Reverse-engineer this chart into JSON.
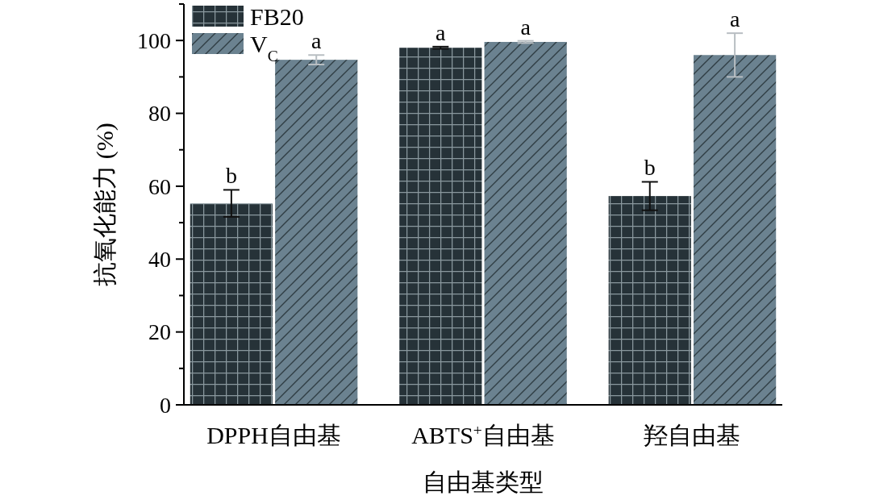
{
  "chart_data": {
    "type": "bar",
    "xlabel": "自由基类型",
    "ylabel": "抗氧化能力 (%)",
    "categories": [
      "DPPH自由基",
      "ABTS$^{+}$自由基",
      "羟自由基"
    ],
    "series": [
      {
        "name": "FB20",
        "color": "#263238",
        "values": [
          55.3,
          98.0,
          57.3
        ],
        "errors": [
          3.7,
          0.3,
          3.9
        ],
        "value_labels": [
          "b",
          "a",
          "b"
        ]
      },
      {
        "name": "V$_{C}$",
        "color": "#6b8290",
        "values": [
          94.7,
          99.6,
          96.0
        ],
        "errors": [
          1.3,
          0.3,
          6.0
        ],
        "value_labels": [
          "a",
          "a",
          "a"
        ]
      }
    ],
    "ylim": [
      0,
      110
    ],
    "yticks": [
      0,
      {
        "value": 10,
        "label": null
      },
      20,
      {
        "value": 30,
        "label": null
      },
      40,
      {
        "value": 50,
        "label": null
      },
      60,
      {
        "value": 70,
        "label": null
      },
      80,
      {
        "value": 90,
        "label": null
      },
      100,
      {
        "value": 110,
        "label": null
      }
    ],
    "grid": false,
    "legend": "top left"
  }
}
